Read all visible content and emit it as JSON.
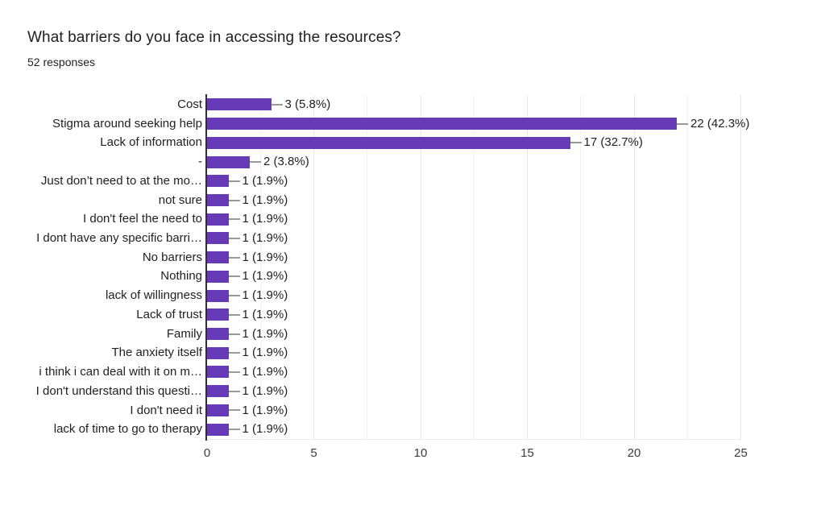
{
  "chart_data": {
    "type": "bar",
    "orientation": "horizontal",
    "title": "What barriers do you face in accessing the resources?",
    "subtitle": "52 responses",
    "categories": [
      "Cost",
      "Stigma around seeking help",
      "Lack of information",
      "-",
      "Just don’t need to at the mo…",
      "not sure",
      "I don't feel the need to",
      "I dont have any specific barri…",
      "No barriers",
      "Nothing",
      "lack of willingness",
      "Lack of trust",
      "Family",
      "The anxiety itself",
      "i think i can deal with it on m…",
      "I don't understand this questi…",
      "I don't need it",
      "lack of time to go to therapy"
    ],
    "values": [
      3,
      22,
      17,
      2,
      1,
      1,
      1,
      1,
      1,
      1,
      1,
      1,
      1,
      1,
      1,
      1,
      1,
      1
    ],
    "value_labels": [
      "3 (5.8%)",
      "22 (42.3%)",
      "17 (32.7%)",
      "2 (3.8%)",
      "1 (1.9%)",
      "1 (1.9%)",
      "1 (1.9%)",
      "1 (1.9%)",
      "1 (1.9%)",
      "1 (1.9%)",
      "1 (1.9%)",
      "1 (1.9%)",
      "1 (1.9%)",
      "1 (1.9%)",
      "1 (1.9%)",
      "1 (1.9%)",
      "1 (1.9%)",
      "1 (1.9%)"
    ],
    "xlabel": "",
    "ylabel": "",
    "xticks": [
      0,
      5,
      10,
      15,
      20,
      25
    ],
    "xlim": [
      0,
      27.5
    ],
    "grid": true,
    "legend": "none",
    "bar_color": "#673AB7",
    "connector_color": "#9a9a9a",
    "gridline_major_color": "#e6e6e6",
    "gridline_minor_color": "#f2f2f2",
    "axis_line_color": "#2f2f2f",
    "text_color": "#212121",
    "tick_label_color": "#3c3c3c"
  }
}
